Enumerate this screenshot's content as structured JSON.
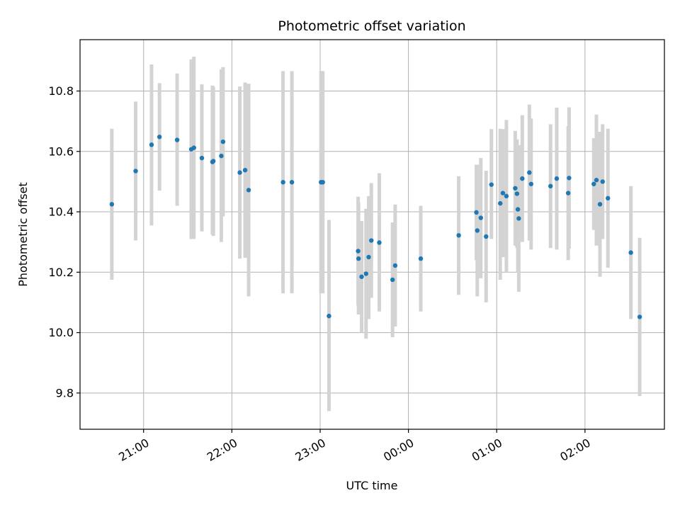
{
  "chart_data": {
    "type": "scatter",
    "title": "Photometric offset variation",
    "xlabel": "UTC time",
    "ylabel": "Photometric offset",
    "x_unit": "hours after midnight UTC (negative = previous evening)",
    "xlim": [
      -3.72,
      2.9
    ],
    "ylim": [
      9.68,
      10.97
    ],
    "grid": true,
    "x_ticks": [
      {
        "value": -3,
        "label": "21:00"
      },
      {
        "value": -2,
        "label": "22:00"
      },
      {
        "value": -1,
        "label": "23:00"
      },
      {
        "value": 0,
        "label": "00:00"
      },
      {
        "value": 1,
        "label": "01:00"
      },
      {
        "value": 2,
        "label": "02:00"
      }
    ],
    "y_ticks": [
      {
        "value": 9.8,
        "label": "9.8"
      },
      {
        "value": 10.0,
        "label": "10.0"
      },
      {
        "value": 10.2,
        "label": "10.2"
      },
      {
        "value": 10.4,
        "label": "10.4"
      },
      {
        "value": 10.6,
        "label": "10.6"
      },
      {
        "value": 10.8,
        "label": "10.8"
      }
    ],
    "colors": {
      "marker": "#1f77b4",
      "errorbar": "#d3d3d3",
      "grid": "#b0b0b0"
    },
    "series": [
      {
        "points": [
          {
            "x": -3.36,
            "y": 10.425,
            "lo": 10.175,
            "hi": 10.675
          },
          {
            "x": -3.09,
            "y": 10.535,
            "lo": 10.305,
            "hi": 10.765
          },
          {
            "x": -2.91,
            "y": 10.622,
            "lo": 10.355,
            "hi": 10.888
          },
          {
            "x": -2.82,
            "y": 10.648,
            "lo": 10.47,
            "hi": 10.826
          },
          {
            "x": -2.62,
            "y": 10.638,
            "lo": 10.42,
            "hi": 10.858
          },
          {
            "x": -2.46,
            "y": 10.607,
            "lo": 10.31,
            "hi": 10.905
          },
          {
            "x": -2.43,
            "y": 10.612,
            "lo": 10.31,
            "hi": 10.914
          },
          {
            "x": -2.34,
            "y": 10.578,
            "lo": 10.335,
            "hi": 10.822
          },
          {
            "x": -2.22,
            "y": 10.565,
            "lo": 10.325,
            "hi": 10.818
          },
          {
            "x": -2.21,
            "y": 10.568,
            "lo": 10.32,
            "hi": 10.814
          },
          {
            "x": -2.12,
            "y": 10.585,
            "lo": 10.3,
            "hi": 10.872
          },
          {
            "x": -2.1,
            "y": 10.632,
            "lo": 10.385,
            "hi": 10.879
          },
          {
            "x": -1.91,
            "y": 10.53,
            "lo": 10.245,
            "hi": 10.815
          },
          {
            "x": -1.85,
            "y": 10.538,
            "lo": 10.248,
            "hi": 10.828
          },
          {
            "x": -1.81,
            "y": 10.472,
            "lo": 10.12,
            "hi": 10.824
          },
          {
            "x": -1.42,
            "y": 10.498,
            "lo": 10.13,
            "hi": 10.866
          },
          {
            "x": -1.32,
            "y": 10.498,
            "lo": 10.13,
            "hi": 10.866
          },
          {
            "x": -0.99,
            "y": 10.498,
            "lo": 10.13,
            "hi": 10.866
          },
          {
            "x": -0.97,
            "y": 10.498,
            "lo": 10.13,
            "hi": 10.866
          },
          {
            "x": -0.9,
            "y": 10.055,
            "lo": 9.74,
            "hi": 10.373
          },
          {
            "x": -0.57,
            "y": 10.27,
            "lo": 10.09,
            "hi": 10.45
          },
          {
            "x": -0.565,
            "y": 10.245,
            "lo": 10.06,
            "hi": 10.43
          },
          {
            "x": -0.53,
            "y": 10.185,
            "lo": 10.0,
            "hi": 10.37
          },
          {
            "x": -0.48,
            "y": 10.195,
            "lo": 9.98,
            "hi": 10.41
          },
          {
            "x": -0.45,
            "y": 10.25,
            "lo": 10.045,
            "hi": 10.452
          },
          {
            "x": -0.42,
            "y": 10.305,
            "lo": 10.115,
            "hi": 10.495
          },
          {
            "x": -0.33,
            "y": 10.298,
            "lo": 10.07,
            "hi": 10.528
          },
          {
            "x": -0.18,
            "y": 10.175,
            "lo": 9.985,
            "hi": 10.365
          },
          {
            "x": -0.15,
            "y": 10.222,
            "lo": 10.02,
            "hi": 10.424
          },
          {
            "x": 0.14,
            "y": 10.245,
            "lo": 10.07,
            "hi": 10.42
          },
          {
            "x": 0.57,
            "y": 10.322,
            "lo": 10.125,
            "hi": 10.518
          },
          {
            "x": 0.77,
            "y": 10.398,
            "lo": 10.24,
            "hi": 10.556
          },
          {
            "x": 0.78,
            "y": 10.338,
            "lo": 10.12,
            "hi": 10.556
          },
          {
            "x": 0.82,
            "y": 10.38,
            "lo": 10.18,
            "hi": 10.578
          },
          {
            "x": 0.88,
            "y": 10.318,
            "lo": 10.1,
            "hi": 10.536
          },
          {
            "x": 0.94,
            "y": 10.49,
            "lo": 10.31,
            "hi": 10.674
          },
          {
            "x": 1.04,
            "y": 10.428,
            "lo": 10.175,
            "hi": 10.675
          },
          {
            "x": 1.07,
            "y": 10.462,
            "lo": 10.25,
            "hi": 10.674
          },
          {
            "x": 1.11,
            "y": 10.452,
            "lo": 10.2,
            "hi": 10.704
          },
          {
            "x": 1.21,
            "y": 10.478,
            "lo": 10.288,
            "hi": 10.668
          },
          {
            "x": 1.23,
            "y": 10.46,
            "lo": 10.28,
            "hi": 10.64
          },
          {
            "x": 1.24,
            "y": 10.408,
            "lo": 10.2,
            "hi": 10.616
          },
          {
            "x": 1.25,
            "y": 10.378,
            "lo": 10.135,
            "hi": 10.621
          },
          {
            "x": 1.29,
            "y": 10.51,
            "lo": 10.3,
            "hi": 10.72
          },
          {
            "x": 1.37,
            "y": 10.53,
            "lo": 10.305,
            "hi": 10.755
          },
          {
            "x": 1.39,
            "y": 10.492,
            "lo": 10.275,
            "hi": 10.709
          },
          {
            "x": 1.61,
            "y": 10.485,
            "lo": 10.28,
            "hi": 10.69
          },
          {
            "x": 1.68,
            "y": 10.51,
            "lo": 10.275,
            "hi": 10.745
          },
          {
            "x": 1.81,
            "y": 10.462,
            "lo": 10.24,
            "hi": 10.684
          },
          {
            "x": 1.82,
            "y": 10.512,
            "lo": 10.278,
            "hi": 10.746
          },
          {
            "x": 2.1,
            "y": 10.492,
            "lo": 10.34,
            "hi": 10.644
          },
          {
            "x": 2.13,
            "y": 10.505,
            "lo": 10.288,
            "hi": 10.722
          },
          {
            "x": 2.17,
            "y": 10.425,
            "lo": 10.185,
            "hi": 10.665
          },
          {
            "x": 2.2,
            "y": 10.5,
            "lo": 10.31,
            "hi": 10.69
          },
          {
            "x": 2.26,
            "y": 10.445,
            "lo": 10.215,
            "hi": 10.675
          },
          {
            "x": 2.52,
            "y": 10.265,
            "lo": 10.045,
            "hi": 10.485
          },
          {
            "x": 2.62,
            "y": 10.052,
            "lo": 9.79,
            "hi": 10.314
          }
        ]
      }
    ]
  }
}
